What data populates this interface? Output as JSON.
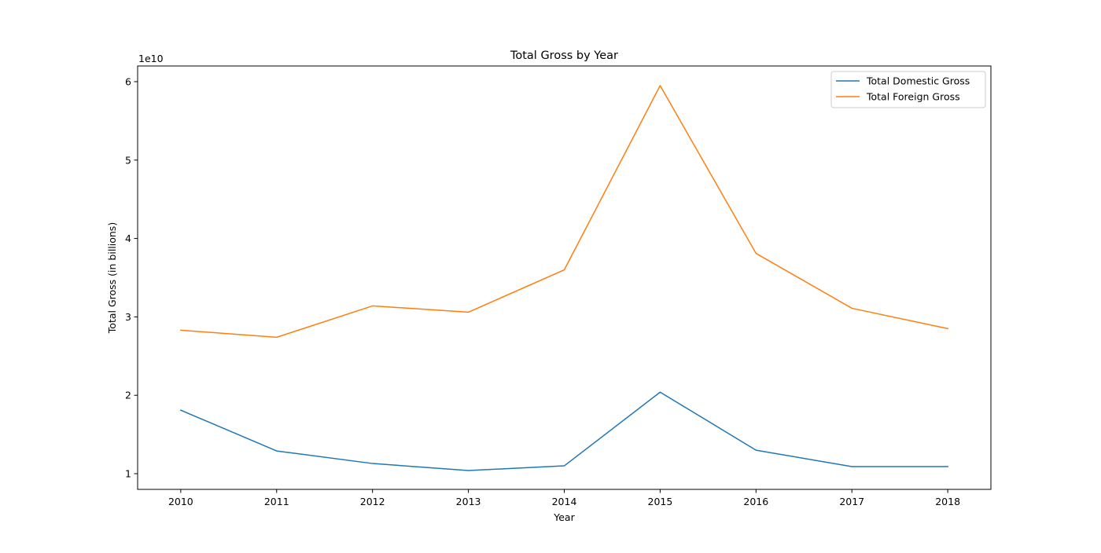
{
  "chart_data": {
    "type": "line",
    "title": "Total Gross by Year",
    "xlabel": "Year",
    "ylabel": "Total Gross (in billions)",
    "y_offset_label": "1e10",
    "x": [
      2010,
      2011,
      2012,
      2013,
      2014,
      2015,
      2016,
      2017,
      2018
    ],
    "xlim": [
      2009.55,
      2018.45
    ],
    "ylim": [
      0.8,
      6.2
    ],
    "y_unit_multiplier": 10000000000,
    "x_ticks": [
      "2010",
      "2011",
      "2012",
      "2013",
      "2014",
      "2015",
      "2016",
      "2017",
      "2018"
    ],
    "y_ticks": [
      1,
      2,
      3,
      4,
      5,
      6
    ],
    "y_tick_labels": [
      "1",
      "2",
      "3",
      "4",
      "5",
      "6"
    ],
    "grid": false,
    "legend_position": "upper right",
    "series": [
      {
        "name": "Total Domestic Gross",
        "color": "#1f77b4",
        "values": [
          1.81,
          1.29,
          1.13,
          1.04,
          1.1,
          2.04,
          1.3,
          1.09,
          1.09
        ]
      },
      {
        "name": "Total Foreign Gross",
        "color": "#ff7f0e",
        "values": [
          2.83,
          2.74,
          3.14,
          3.06,
          3.6,
          5.95,
          3.81,
          3.11,
          2.85
        ]
      }
    ]
  }
}
